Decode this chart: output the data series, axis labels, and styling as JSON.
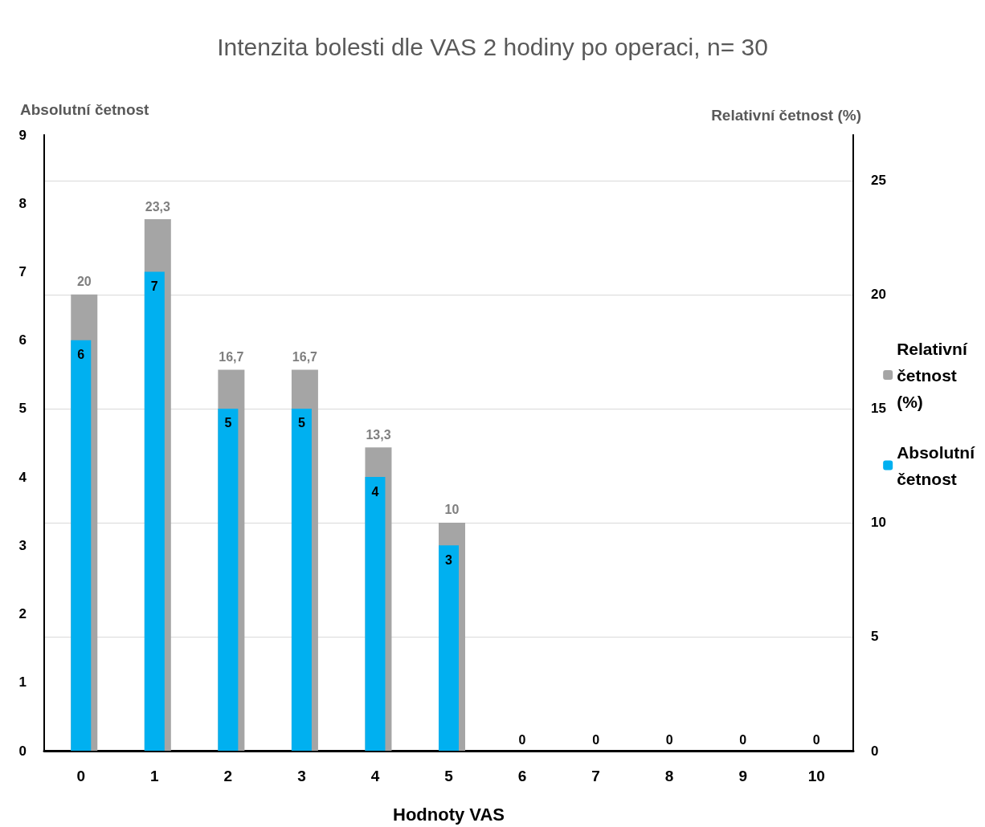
{
  "chart_data": {
    "type": "bar",
    "title": "Intenzita bolesti dle VAS 2 hodiny po operaci, n= 30",
    "xlabel": "Hodnoty VAS",
    "ylabel": "Absolutní četnost",
    "y2label": "Relativní četnost (%)",
    "categories": [
      "0",
      "1",
      "2",
      "3",
      "4",
      "5",
      "6",
      "7",
      "8",
      "9",
      "10"
    ],
    "series": [
      {
        "name": "Relativní četnost (%)",
        "color": "#a5a5a5",
        "axis": "y2",
        "values": [
          20,
          23.3,
          16.7,
          16.7,
          13.3,
          10,
          0,
          0,
          0,
          0,
          0
        ],
        "value_labels": [
          "20",
          "23,3",
          "16,7",
          "16,7",
          "13,3",
          "10",
          null,
          null,
          null,
          null,
          null
        ]
      },
      {
        "name": "Absolutní četnost",
        "color": "#00b0f0",
        "axis": "y",
        "values": [
          6,
          7,
          5,
          5,
          4,
          3,
          0,
          0,
          0,
          0,
          0
        ],
        "value_labels": [
          "6",
          "7",
          "5",
          "5",
          "4",
          "3",
          "0",
          "0",
          "0",
          "0",
          "0"
        ]
      }
    ],
    "ylim": [
      0,
      9
    ],
    "yticks": [
      0,
      1,
      2,
      3,
      4,
      5,
      6,
      7,
      8,
      9
    ],
    "y2lim": [
      0,
      27
    ],
    "y2ticks": [
      0,
      5,
      10,
      15,
      20,
      25
    ],
    "grid": "y2",
    "legend": "right"
  }
}
